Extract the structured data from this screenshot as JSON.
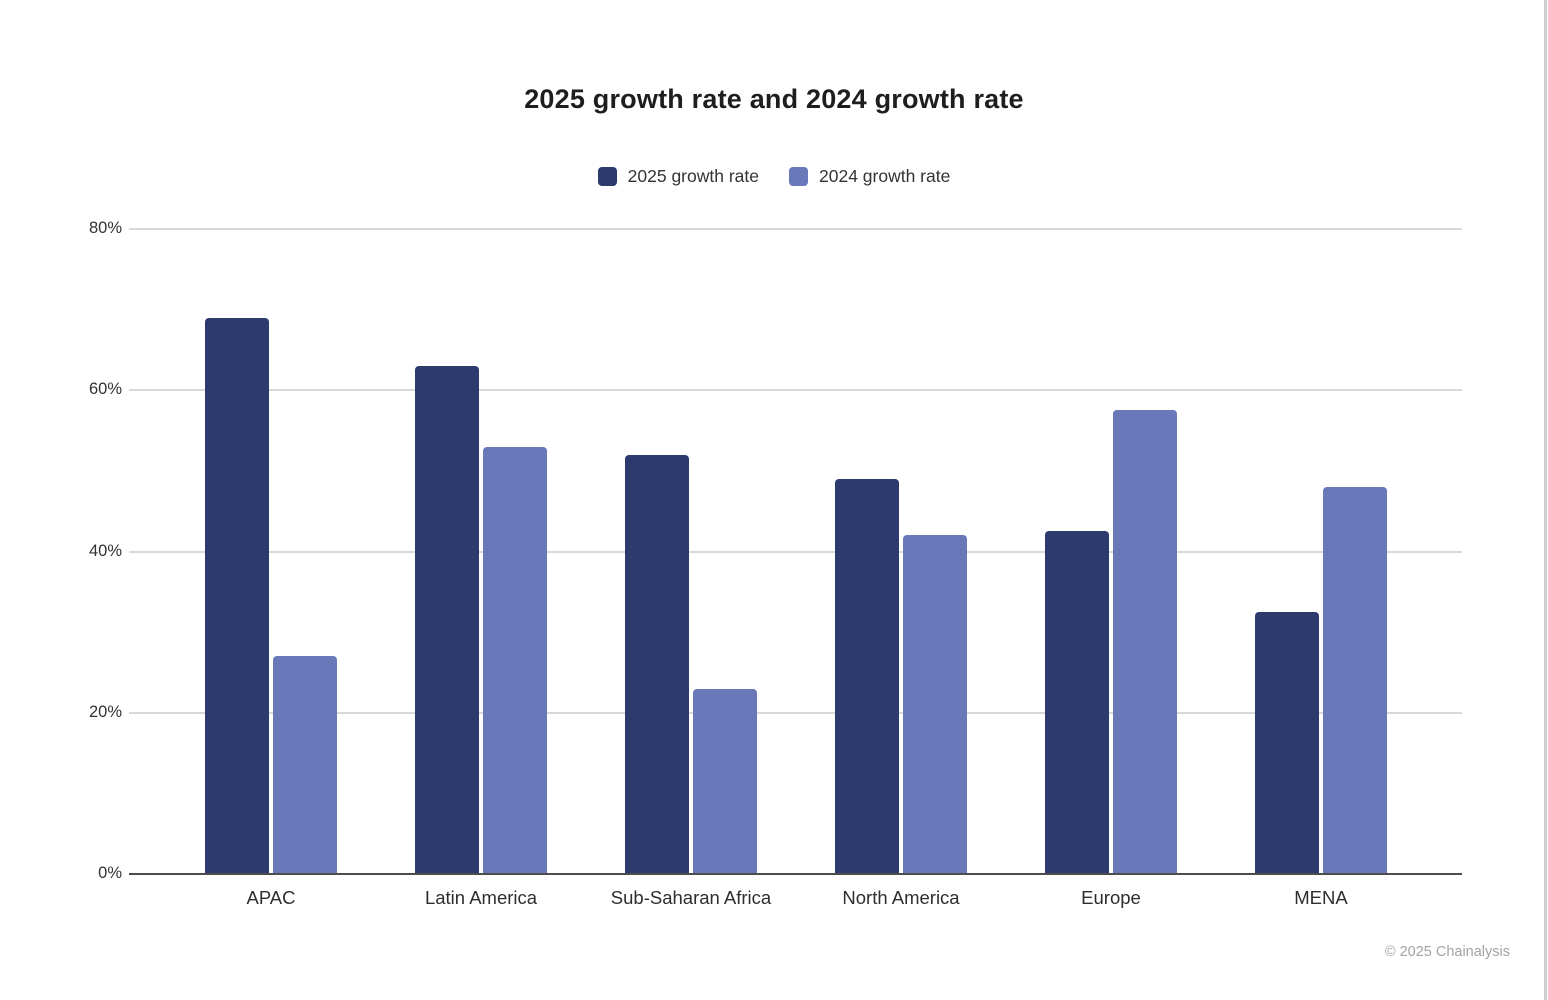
{
  "chart_data": {
    "type": "bar",
    "title": "2025 growth rate and 2024 growth rate",
    "categories": [
      "APAC",
      "Latin America",
      "Sub-Saharan Africa",
      "North America",
      "Europe",
      "MENA"
    ],
    "series": [
      {
        "name": "2025 growth rate",
        "color": "#2c3a6d",
        "values": [
          69,
          63,
          52,
          49,
          42.5,
          32.5
        ]
      },
      {
        "name": "2024 growth rate",
        "color": "#6878b8",
        "values": [
          27,
          53,
          23,
          42,
          57.5,
          48
        ]
      }
    ],
    "xlabel": "",
    "ylabel": "",
    "ylim": [
      0,
      80
    ],
    "y_ticks": [
      "0%",
      "20%",
      "40%",
      "60%",
      "80%"
    ],
    "y_tick_values": [
      0,
      20,
      40,
      60,
      80
    ],
    "grid": true,
    "legend_position": "top",
    "value_unit": "%"
  },
  "footer": {
    "text": "© 2025 Chainalysis"
  },
  "colors": {
    "background": "#ffffff",
    "gridline": "#d9d9d9",
    "axis_line": "#4d4d4d",
    "title_text": "#1e1e1e",
    "tick_text": "#333333",
    "category_text": "#2e2e2e",
    "footer_text": "#a3a3a3"
  }
}
